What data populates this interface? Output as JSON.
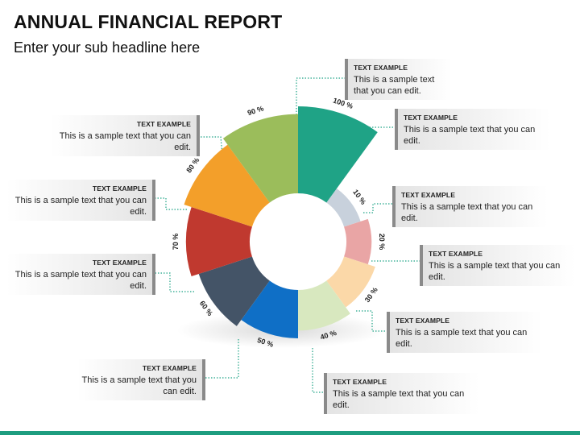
{
  "header": {
    "title": "ANNUAL FINANCIAL REPORT",
    "subtitle": "Enter your sub headline here"
  },
  "chart_data": {
    "type": "pie",
    "segments": [
      {
        "label": "10 %",
        "value": 10,
        "color": "#c8d1dc"
      },
      {
        "label": "20 %",
        "value": 20,
        "color": "#e9a5a5"
      },
      {
        "label": "30 %",
        "value": 30,
        "color": "#fbd8a8"
      },
      {
        "label": "40 %",
        "value": 40,
        "color": "#d8e8bf"
      },
      {
        "label": "50 %",
        "value": 50,
        "color": "#0f6fc6"
      },
      {
        "label": "60 %",
        "value": 60,
        "color": "#445467"
      },
      {
        "label": "70 %",
        "value": 70,
        "color": "#c0392f"
      },
      {
        "label": "80 %",
        "value": 80,
        "color": "#f39f2a"
      },
      {
        "label": "90 %",
        "value": 90,
        "color": "#9bbd5b"
      },
      {
        "label": "100 %",
        "value": 100,
        "color": "#1fa386"
      }
    ]
  },
  "callouts": [
    {
      "head": "TEXT EXAMPLE",
      "body": "This is a sample text that you can edit."
    },
    {
      "head": "TEXT EXAMPLE",
      "body": "This is a sample text that you can edit."
    },
    {
      "head": "TEXT EXAMPLE",
      "body": "This is a sample text that you can edit."
    },
    {
      "head": "TEXT EXAMPLE",
      "body": "This is a sample text that you can edit."
    },
    {
      "head": "TEXT EXAMPLE",
      "body": "This is a sample text that you can edit."
    },
    {
      "head": "TEXT EXAMPLE",
      "body": "This is a sample text that you can edit."
    },
    {
      "head": "TEXT EXAMPLE",
      "body": "This is a sample text that you can edit."
    },
    {
      "head": "TEXT EXAMPLE",
      "body": "This is a sample text that you can edit."
    },
    {
      "head": "TEXT EXAMPLE",
      "body": "This is a sample text that you can edit."
    },
    {
      "head": "TEXT EXAMPLE",
      "body": "This is a sample text that you can edit."
    }
  ],
  "colors": {
    "accent": "#1d9d7f",
    "connector": "#1fa386"
  }
}
